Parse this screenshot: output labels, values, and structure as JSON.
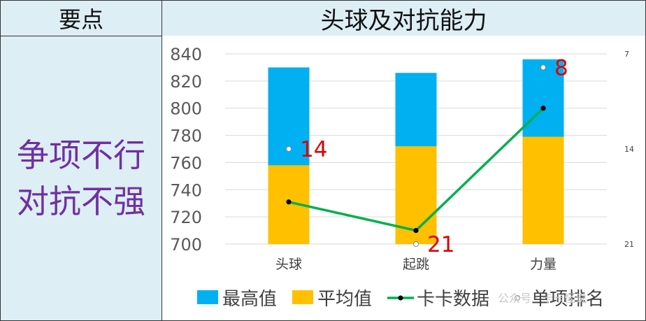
{
  "header": {
    "left_title": "要点",
    "right_title": "头球及对抗能力"
  },
  "sidebar": {
    "line1": "争项不行",
    "line2": "对抗不强"
  },
  "watermark": "公众号 · 卡卡怪说",
  "chart_data": {
    "type": "bar",
    "categories": [
      "头球",
      "起跳",
      "力量"
    ],
    "ylim": [
      700,
      840
    ],
    "yticks": [
      700,
      720,
      740,
      760,
      780,
      800,
      820,
      840
    ],
    "y2lim": [
      21,
      7
    ],
    "y2ticks": [
      7,
      14,
      21
    ],
    "series": [
      {
        "name": "最高值",
        "type": "bar",
        "color": "#00b0f0",
        "values": [
          830,
          826,
          836
        ]
      },
      {
        "name": "平均值",
        "type": "bar",
        "color": "#ffc000",
        "values": [
          758,
          772,
          779
        ]
      },
      {
        "name": "卡卡数据",
        "type": "line",
        "color": "#00b050",
        "values": [
          731,
          710,
          800
        ]
      },
      {
        "name": "单项排名",
        "type": "scatter",
        "axis": "secondary",
        "color": "#ffffff",
        "values": [
          14,
          21,
          8
        ]
      }
    ],
    "rank_labels": [
      "14",
      "21",
      "8"
    ],
    "grid": true,
    "legend": "bottom"
  }
}
